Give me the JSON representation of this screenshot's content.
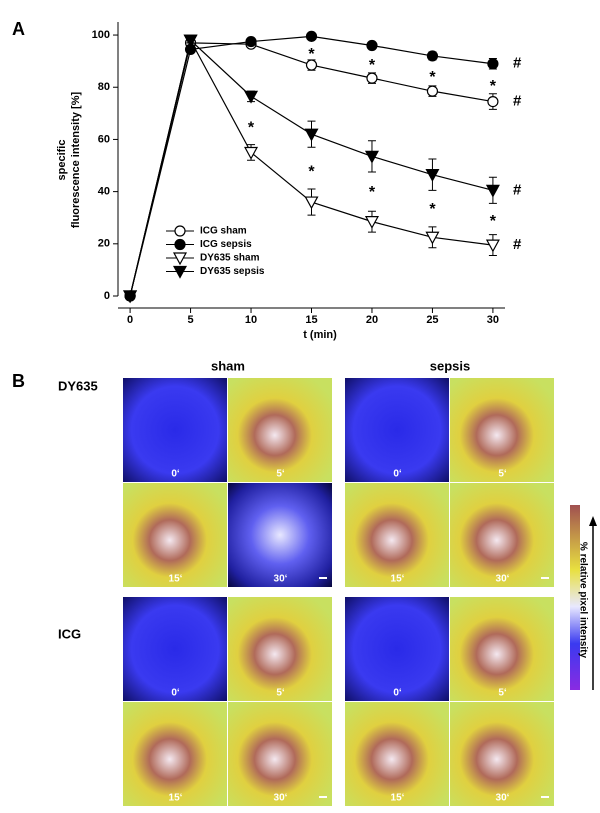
{
  "chart_data": {
    "type": "line",
    "panel_label": "A",
    "y_label_lines": [
      "specific",
      "fluorescence intensity [%]"
    ],
    "x_label": "t (min)",
    "x": [
      0,
      5,
      10,
      15,
      20,
      25,
      30
    ],
    "xlim": [
      -1,
      31
    ],
    "xticks": [
      0,
      5,
      10,
      15,
      20,
      25,
      30
    ],
    "ylim": [
      0,
      105
    ],
    "yticks": [
      0,
      20,
      40,
      60,
      80,
      100
    ],
    "legend": "lower left",
    "series": [
      {
        "name": "ICG sham",
        "marker": "open-circle",
        "color": "#000000",
        "values": [
          0,
          97,
          96.5,
          88.5,
          83.5,
          78.5,
          74.5
        ],
        "errors": [
          0,
          1,
          1,
          2,
          2,
          2,
          3
        ],
        "end_label": "#"
      },
      {
        "name": "ICG sepsis",
        "marker": "filled-circle",
        "color": "#000000",
        "values": [
          0,
          94.5,
          97.5,
          99.5,
          96,
          92,
          89
        ],
        "errors": [
          0,
          1,
          1,
          1,
          1,
          1.5,
          2
        ],
        "end_label": "#"
      },
      {
        "name": "DY635 sham",
        "marker": "open-triangle",
        "color": "#000000",
        "values": [
          0,
          98,
          55,
          36,
          28.5,
          22.5,
          19.5
        ],
        "errors": [
          0,
          1,
          3,
          5,
          4,
          4,
          4
        ],
        "end_label": "#"
      },
      {
        "name": "DY635 sepsis",
        "marker": "filled-triangle",
        "color": "#000000",
        "values": [
          0,
          98,
          76.5,
          62,
          53.5,
          46.5,
          40.5
        ],
        "errors": [
          0,
          1,
          2,
          5,
          6,
          6,
          5
        ],
        "end_label": "#"
      }
    ],
    "annotations": [
      {
        "text": "*",
        "x": 15,
        "between": [
          0,
          1
        ]
      },
      {
        "text": "*",
        "x": 20,
        "between": [
          0,
          1
        ]
      },
      {
        "text": "*",
        "x": 25,
        "between": [
          0,
          1
        ]
      },
      {
        "text": "*",
        "x": 30,
        "between": [
          0,
          1
        ]
      },
      {
        "text": "*",
        "x": 10,
        "between": [
          2,
          3
        ]
      },
      {
        "text": "*",
        "x": 15,
        "between": [
          2,
          3
        ]
      },
      {
        "text": "*",
        "x": 20,
        "between": [
          2,
          3
        ]
      },
      {
        "text": "*",
        "x": 25,
        "between": [
          2,
          3
        ]
      },
      {
        "text": "*",
        "x": 30,
        "between": [
          2,
          3
        ]
      }
    ]
  },
  "panel_b": {
    "label": "B",
    "columns": [
      "sham",
      "sepsis"
    ],
    "rows": [
      "DY635",
      "ICG"
    ],
    "times": [
      "0‘",
      "5‘",
      "15‘",
      "30‘"
    ],
    "colorbar_label": "% relative pixel intensity"
  }
}
